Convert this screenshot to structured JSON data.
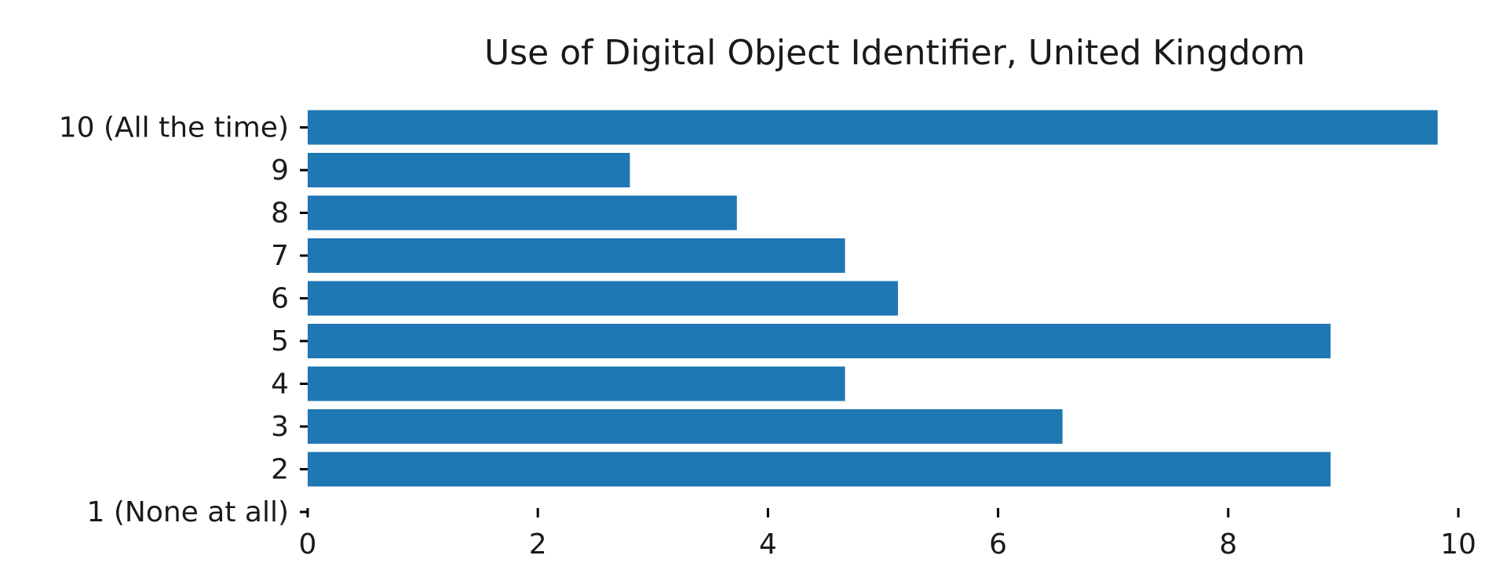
{
  "chart_data": {
    "type": "bar",
    "orientation": "horizontal",
    "title": "Use of Digital Object Identifier, United Kingdom",
    "xlabel": "",
    "ylabel": "",
    "categories": [
      "1 (None at all)",
      "2",
      "3",
      "4",
      "5",
      "6",
      "7",
      "8",
      "9",
      "10 (All the time)"
    ],
    "values": [
      0,
      8.89,
      6.56,
      4.67,
      8.89,
      5.13,
      4.67,
      3.73,
      2.8,
      9.82
    ],
    "xlim": [
      0,
      10
    ],
    "xticks": [
      0,
      2,
      4,
      6,
      8,
      10
    ],
    "grid": false,
    "bar_color": "#1f77b4"
  }
}
